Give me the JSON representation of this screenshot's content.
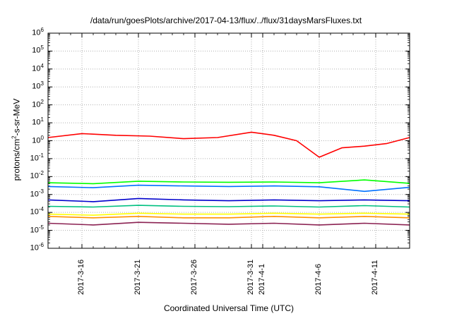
{
  "chart_data": {
    "type": "line",
    "title": "/data/run/goesPlots/archive/2017-04-13/flux/../flux/31daysMarsFluxes.txt",
    "xlabel": "Coordinated Universal Time (UTC)",
    "ylabel": {
      "base": "protons/cm",
      "sup": "2",
      "rest": "-s-sr-MeV"
    },
    "yscale": "log",
    "ylim_exp": [
      -6,
      6
    ],
    "ytick_base": "10",
    "ytick_exponents": [
      "-6",
      "-5",
      "-4",
      "-3",
      "-2",
      "-1",
      "0",
      "1",
      "2",
      "3",
      "4",
      "5",
      "6"
    ],
    "xlim": [
      "2017-03-13",
      "2017-04-14"
    ],
    "xticks": [
      {
        "date": "2017-03-16",
        "label": "2017-3-16"
      },
      {
        "date": "2017-03-21",
        "label": "2017-3-21"
      },
      {
        "date": "2017-03-26",
        "label": "2017-3-26"
      },
      {
        "date": "2017-03-31",
        "label": "2017-3-31"
      },
      {
        "date": "2017-04-01",
        "label": "2017-4-1"
      },
      {
        "date": "2017-04-06",
        "label": "2017-4-6"
      },
      {
        "date": "2017-04-11",
        "label": "2017-4-11"
      }
    ],
    "grid": true,
    "colors": [
      "#ff0000",
      "#00ff00",
      "#0070ff",
      "#0000cc",
      "#00c080",
      "#ffff00",
      "#ff9000",
      "#8b2252"
    ],
    "series": [
      {
        "color": "#ff0000",
        "x": [
          "2017-03-13",
          "2017-03-16",
          "2017-03-19",
          "2017-03-22",
          "2017-03-25",
          "2017-03-28",
          "2017-03-31",
          "2017-04-02",
          "2017-04-04",
          "2017-04-06",
          "2017-04-08",
          "2017-04-10",
          "2017-04-12",
          "2017-04-14"
        ],
        "y": [
          1.5,
          2.5,
          2.0,
          1.8,
          1.3,
          1.5,
          3.0,
          2.0,
          1.0,
          0.12,
          0.4,
          0.5,
          0.7,
          1.5
        ]
      },
      {
        "color": "#00ff00",
        "x": [
          "2017-03-13",
          "2017-03-17",
          "2017-03-21",
          "2017-03-25",
          "2017-03-29",
          "2017-04-02",
          "2017-04-06",
          "2017-04-10",
          "2017-04-14"
        ],
        "y": [
          0.0045,
          0.004,
          0.0055,
          0.005,
          0.0048,
          0.005,
          0.0045,
          0.0065,
          0.0042
        ]
      },
      {
        "color": "#0070ff",
        "x": [
          "2017-03-13",
          "2017-03-17",
          "2017-03-21",
          "2017-03-25",
          "2017-03-29",
          "2017-04-02",
          "2017-04-06",
          "2017-04-10",
          "2017-04-14"
        ],
        "y": [
          0.0028,
          0.0024,
          0.0033,
          0.003,
          0.0028,
          0.003,
          0.0027,
          0.0015,
          0.0025
        ]
      },
      {
        "color": "#0000cc",
        "x": [
          "2017-03-13",
          "2017-03-17",
          "2017-03-21",
          "2017-03-25",
          "2017-03-29",
          "2017-04-02",
          "2017-04-06",
          "2017-04-10",
          "2017-04-14"
        ],
        "y": [
          0.0005,
          0.0004,
          0.0006,
          0.0005,
          0.00045,
          0.0005,
          0.00045,
          0.0005,
          0.00045
        ]
      },
      {
        "color": "#00c080",
        "x": [
          "2017-03-13",
          "2017-03-17",
          "2017-03-21",
          "2017-03-25",
          "2017-03-29",
          "2017-04-02",
          "2017-04-06",
          "2017-04-10",
          "2017-04-14"
        ],
        "y": [
          0.00022,
          0.0002,
          0.00025,
          0.00022,
          0.00021,
          0.00023,
          0.0002,
          0.00024,
          0.0002
        ]
      },
      {
        "color": "#ffff00",
        "x": [
          "2017-03-13",
          "2017-03-17",
          "2017-03-21",
          "2017-03-25",
          "2017-03-29",
          "2017-04-02",
          "2017-04-06",
          "2017-04-10",
          "2017-04-14"
        ],
        "y": [
          8e-05,
          7e-05,
          9e-05,
          8e-05,
          8e-05,
          9e-05,
          8e-05,
          9e-05,
          8e-05
        ]
      },
      {
        "color": "#ff9000",
        "x": [
          "2017-03-13",
          "2017-03-17",
          "2017-03-21",
          "2017-03-25",
          "2017-03-29",
          "2017-04-02",
          "2017-04-06",
          "2017-04-10",
          "2017-04-14"
        ],
        "y": [
          6e-05,
          5e-05,
          6e-05,
          5e-05,
          5e-05,
          6e-05,
          5e-05,
          6e-05,
          5e-05
        ]
      },
      {
        "color": "#8b2252",
        "x": [
          "2017-03-13",
          "2017-03-17",
          "2017-03-21",
          "2017-03-25",
          "2017-03-29",
          "2017-04-02",
          "2017-04-06",
          "2017-04-10",
          "2017-04-14"
        ],
        "y": [
          2.5e-05,
          2e-05,
          2.8e-05,
          2.5e-05,
          2.2e-05,
          2.5e-05,
          2e-05,
          2.5e-05,
          2e-05
        ]
      }
    ]
  }
}
